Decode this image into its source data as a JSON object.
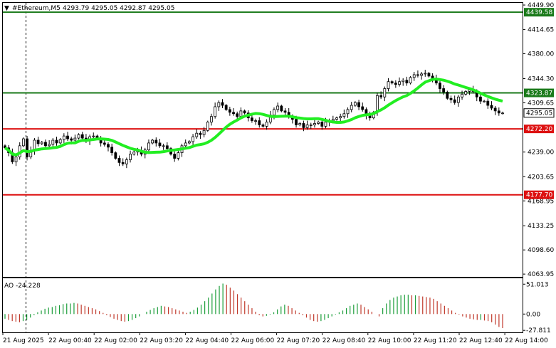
{
  "header": {
    "symbol": "#Ethereum,M5",
    "ohlc": "4293.79 4295.05 4292.87 4295.05"
  },
  "colors": {
    "background": "#ffffff",
    "candle": "#000000",
    "ma": "#22ee22",
    "support_resistance_green": "#1a7a1a",
    "support_resistance_red": "#dd1111",
    "ao_up": "#1c9e3a",
    "ao_down": "#c0392b"
  },
  "chart_data": [
    {
      "type": "candlestick",
      "title": "#Ethereum,M5",
      "price_axis_ticks": [
        "4449.90",
        "4414.65",
        "4380.00",
        "4344.30",
        "4309.65",
        "4239.00",
        "4203.65",
        "4168.95",
        "4133.25",
        "4098.60",
        "4063.95"
      ],
      "ylim": [
        4060,
        4452
      ],
      "x_tick_labels": [
        "21 Aug 2025",
        "22 Aug 00:40",
        "22 Aug 02:00",
        "22 Aug 03:20",
        "22 Aug 04:40",
        "22 Aug 06:00",
        "22 Aug 07:20",
        "22 Aug 08:40",
        "22 Aug 10:00",
        "22 Aug 11:20",
        "22 Aug 12:40",
        "22 Aug 14:00"
      ],
      "horizontal_levels": [
        {
          "value": 4439.58,
          "label": "4439.58",
          "color": "green"
        },
        {
          "value": 4323.87,
          "label": "4323.87",
          "color": "green"
        },
        {
          "value": 4272.2,
          "label": "4272.20",
          "color": "red"
        },
        {
          "value": 4177.7,
          "label": "4177.70",
          "color": "red"
        }
      ],
      "current_price": {
        "value": 4295.05,
        "label": "4295.05"
      },
      "close_series": [
        4245,
        4238,
        4225,
        4232,
        4248,
        4258,
        4232,
        4241,
        4256,
        4251,
        4253,
        4248,
        4250,
        4256,
        4252,
        4257,
        4262,
        4258,
        4256,
        4259,
        4264,
        4259,
        4255,
        4261,
        4262,
        4258,
        4252,
        4250,
        4246,
        4238,
        4230,
        4224,
        4222,
        4228,
        4236,
        4239,
        4241,
        4236,
        4242,
        4252,
        4256,
        4252,
        4248,
        4248,
        4244,
        4236,
        4230,
        4238,
        4248,
        4252,
        4254,
        4261,
        4266,
        4264,
        4270,
        4282,
        4290,
        4304,
        4310,
        4306,
        4300,
        4296,
        4294,
        4290,
        4298,
        4295,
        4288,
        4284,
        4284,
        4278,
        4276,
        4282,
        4292,
        4300,
        4305,
        4298,
        4296,
        4290,
        4286,
        4278,
        4280,
        4274,
        4278,
        4278,
        4280,
        4282,
        4276,
        4282,
        4284,
        4286,
        4288,
        4290,
        4294,
        4300,
        4306,
        4310,
        4304,
        4300,
        4292,
        4288,
        4296,
        4320,
        4318,
        4330,
        4340,
        4338,
        4336,
        4340,
        4342,
        4338,
        4346,
        4350,
        4349,
        4351,
        4352,
        4348,
        4344,
        4338,
        4330,
        4325,
        4316,
        4314,
        4310,
        4318,
        4322,
        4326,
        4328,
        4326,
        4318,
        4312,
        4312,
        4306,
        4302,
        4298,
        4295,
        4295
      ],
      "moving_average": {
        "ylim_note": "smooth trend line",
        "start": 4242,
        "end": 4324
      },
      "ao": {
        "label": "AO -24.228",
        "axis_ticks": [
          "51.013",
          "0.00",
          "-27.811"
        ],
        "ylim": [
          -30,
          55
        ],
        "values": [
          -8,
          -10,
          -12,
          -13,
          -14,
          -12,
          -10,
          -6,
          -2,
          3,
          6,
          9,
          11,
          12,
          14,
          15,
          17,
          18,
          18,
          19,
          18,
          16,
          14,
          12,
          10,
          8,
          5,
          2,
          -2,
          -5,
          -8,
          -10,
          -12,
          -13,
          -12,
          -10,
          -7,
          -4,
          0,
          4,
          7,
          10,
          12,
          14,
          13,
          12,
          10,
          8,
          6,
          4,
          2,
          4,
          7,
          11,
          16,
          22,
          28,
          35,
          42,
          48,
          52,
          50,
          45,
          40,
          34,
          28,
          22,
          16,
          10,
          4,
          -2,
          -4,
          -3,
          -1,
          3,
          8,
          13,
          16,
          14,
          10,
          6,
          2,
          -2,
          -6,
          -10,
          -12,
          -13,
          -12,
          -10,
          -7,
          -4,
          -1,
          3,
          6,
          10,
          14,
          16,
          18,
          16,
          12,
          8,
          4,
          0,
          -4,
          10,
          18,
          24,
          28,
          30,
          32,
          33,
          33,
          32,
          32,
          31,
          30,
          29,
          28,
          26,
          22,
          18,
          14,
          10,
          6,
          2,
          -1,
          -4,
          -6,
          -8,
          -9,
          -10,
          -10,
          -11,
          -12,
          -14,
          -18,
          -22,
          -24
        ]
      }
    }
  ]
}
